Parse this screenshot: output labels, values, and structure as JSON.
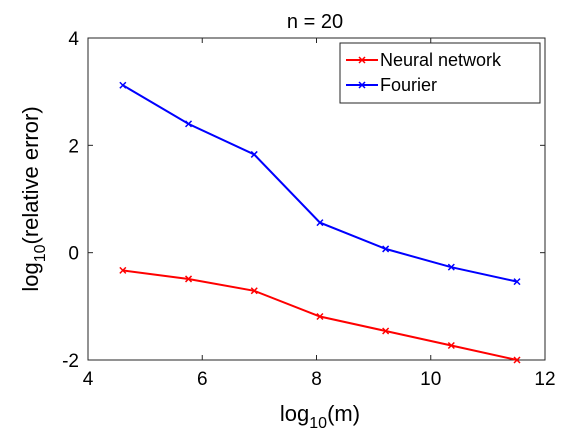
{
  "chart_data": {
    "type": "line",
    "title": "n = 20",
    "xlabel_base": "log",
    "xlabel_sub": "10",
    "xlabel_arg": "(m)",
    "ylabel_base": "log",
    "ylabel_sub": "10",
    "ylabel_arg": "(relative error)",
    "xlim": [
      4,
      12
    ],
    "ylim": [
      -2,
      4
    ],
    "xticks": [
      4,
      6,
      8,
      10,
      12
    ],
    "yticks": [
      -2,
      0,
      2,
      4
    ],
    "x_tick_labels": [
      "4",
      "6",
      "8",
      "10",
      "12"
    ],
    "y_tick_labels": [
      "-2",
      "0",
      "2",
      "4"
    ],
    "x": [
      4.61,
      5.76,
      6.91,
      8.06,
      9.21,
      10.36,
      11.51
    ],
    "series": [
      {
        "name": "Neural network",
        "color": "#ff0000",
        "marker": "x",
        "values": [
          -0.33,
          -0.49,
          -0.71,
          -1.19,
          -1.46,
          -1.73,
          -2.0
        ]
      },
      {
        "name": "Fourier",
        "color": "#0000ff",
        "marker": "x",
        "values": [
          3.12,
          2.4,
          1.83,
          0.56,
          0.07,
          -0.27,
          -0.54
        ]
      }
    ],
    "legend_position": "top-right",
    "grid": false
  }
}
